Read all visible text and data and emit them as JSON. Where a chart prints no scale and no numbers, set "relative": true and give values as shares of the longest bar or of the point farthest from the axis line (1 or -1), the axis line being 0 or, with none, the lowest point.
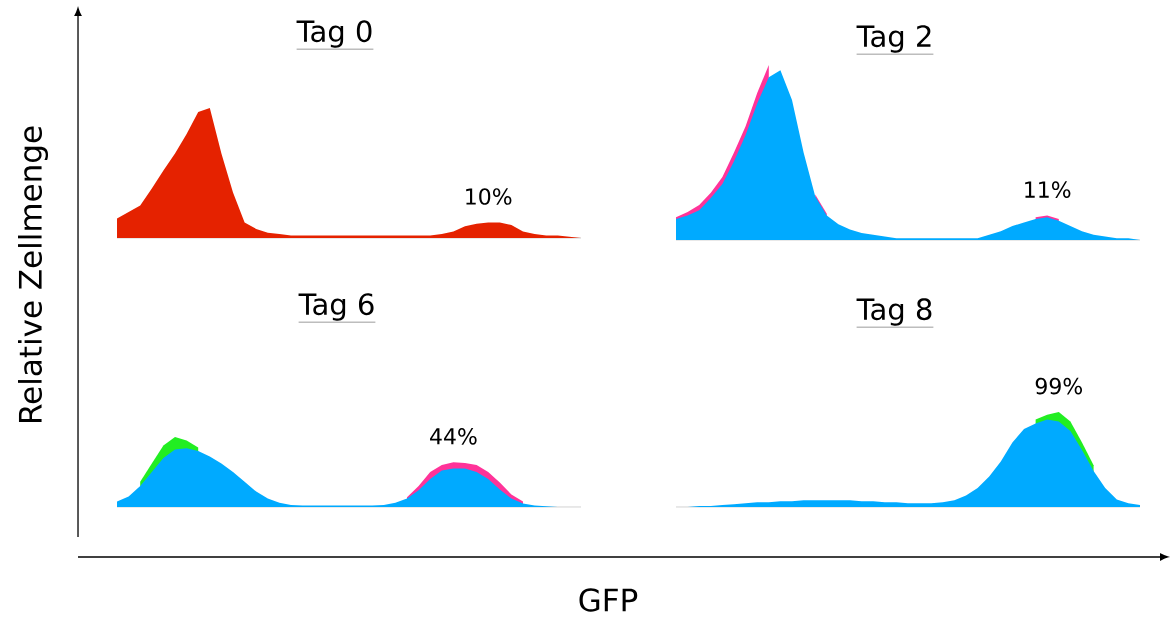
{
  "chart_data": [
    {
      "type": "area",
      "title": "Tag 0",
      "ylabel": "Relative Zellmenge",
      "relative": true,
      "annotations": [
        "10%"
      ],
      "categories": [
        null,
        null,
        null,
        null,
        null,
        null,
        null,
        null,
        null,
        null,
        null,
        null,
        null,
        null,
        null,
        null,
        null,
        null,
        null,
        null,
        null,
        null,
        null,
        null,
        null,
        null,
        null,
        null,
        null,
        null,
        null,
        null,
        null,
        null,
        null,
        null,
        null,
        null,
        null,
        null,
        null
      ],
      "series": [
        {
          "color": "#e52200",
          "values": [
            0.15,
            0.2,
            0.25,
            0.38,
            0.52,
            0.65,
            0.8,
            0.97,
            1.0,
            0.65,
            0.35,
            0.12,
            0.07,
            0.04,
            0.03,
            0.02,
            0.02,
            0.02,
            0.02,
            0.02,
            0.02,
            0.02,
            0.02,
            0.02,
            0.02,
            0.02,
            0.02,
            0.02,
            0.03,
            0.05,
            0.09,
            0.11,
            0.12,
            0.12,
            0.1,
            0.05,
            0.03,
            0.02,
            0.02,
            0.01,
            0
          ]
        }
      ]
    },
    {
      "type": "area",
      "title": "Tag 2",
      "relative": true,
      "annotations": [
        "11%"
      ],
      "categories": [
        null,
        null,
        null,
        null,
        null,
        null,
        null,
        null,
        null,
        null,
        null,
        null,
        null,
        null,
        null,
        null,
        null,
        null,
        null,
        null,
        null,
        null,
        null,
        null,
        null,
        null,
        null,
        null,
        null,
        null,
        null,
        null,
        null,
        null,
        null,
        null,
        null,
        null,
        null,
        null,
        null
      ],
      "series": [
        {
          "color": "#ff3399",
          "values": [
            0.13,
            0.16,
            0.2,
            0.27,
            0.36,
            0.5,
            0.65,
            0.84,
            1.0,
            null,
            null,
            null,
            0.26,
            0.15,
            null,
            null,
            null,
            null,
            null,
            null,
            null,
            null,
            null,
            null,
            null,
            null,
            null,
            null,
            null,
            null,
            null,
            0.13,
            0.14,
            0.12,
            null,
            null,
            null,
            null,
            null,
            null,
            null
          ]
        },
        {
          "color": "#00aaff",
          "values": [
            0.12,
            0.14,
            0.17,
            0.24,
            0.32,
            0.45,
            0.6,
            0.78,
            0.93,
            0.97,
            0.8,
            0.5,
            0.25,
            0.14,
            0.09,
            0.06,
            0.04,
            0.03,
            0.02,
            0.01,
            0.01,
            0.01,
            0.01,
            0.01,
            0.01,
            0.01,
            0.01,
            0.03,
            0.05,
            0.08,
            0.1,
            0.12,
            0.13,
            0.11,
            0.08,
            0.05,
            0.03,
            0.02,
            0.01,
            0.01,
            0
          ]
        }
      ]
    },
    {
      "type": "area",
      "title": "Tag 6",
      "xlabel": "GFP",
      "relative": true,
      "annotations": [
        "44%"
      ],
      "categories": [
        null,
        null,
        null,
        null,
        null,
        null,
        null,
        null,
        null,
        null,
        null,
        null,
        null,
        null,
        null,
        null,
        null,
        null,
        null,
        null,
        null,
        null,
        null,
        null,
        null,
        null,
        null,
        null,
        null,
        null,
        null,
        null,
        null,
        null,
        null,
        null,
        null,
        null,
        null,
        null,
        null
      ],
      "series": [
        {
          "color": "#22ee22",
          "values": [
            null,
            null,
            0.36,
            0.62,
            0.88,
            1.0,
            0.95,
            0.85,
            null,
            null,
            null,
            null,
            null,
            null,
            null,
            null,
            null,
            null,
            null,
            null,
            null,
            null,
            null,
            null,
            null,
            null,
            null,
            null,
            null,
            null,
            null,
            null,
            null,
            null,
            null,
            null,
            null,
            null,
            null,
            null,
            null
          ]
        },
        {
          "color": "#ff3399",
          "values": [
            null,
            null,
            null,
            null,
            null,
            null,
            null,
            null,
            null,
            null,
            null,
            null,
            null,
            null,
            null,
            null,
            null,
            null,
            null,
            null,
            null,
            null,
            null,
            null,
            null,
            0.14,
            0.3,
            0.5,
            0.6,
            0.64,
            0.63,
            0.6,
            0.5,
            0.35,
            0.18,
            0.08,
            null,
            null,
            null,
            null,
            null
          ]
        },
        {
          "color": "#00aaff",
          "values": [
            0.08,
            0.15,
            0.3,
            0.5,
            0.7,
            0.82,
            0.84,
            0.8,
            0.72,
            0.62,
            0.5,
            0.36,
            0.22,
            0.12,
            0.06,
            0.03,
            0.02,
            0.02,
            0.02,
            0.02,
            0.02,
            0.02,
            0.02,
            0.03,
            0.06,
            0.12,
            0.24,
            0.4,
            0.52,
            0.55,
            0.55,
            0.5,
            0.4,
            0.25,
            0.12,
            0.05,
            0.02,
            0.01,
            0,
            0,
            0
          ]
        }
      ]
    },
    {
      "type": "area",
      "title": "Tag 8",
      "relative": true,
      "annotations": [
        "99%"
      ],
      "categories": [
        null,
        null,
        null,
        null,
        null,
        null,
        null,
        null,
        null,
        null,
        null,
        null,
        null,
        null,
        null,
        null,
        null,
        null,
        null,
        null,
        null,
        null,
        null,
        null,
        null,
        null,
        null,
        null,
        null,
        null,
        null,
        null,
        null,
        null,
        null,
        null,
        null,
        null,
        null,
        null,
        null
      ],
      "series": [
        {
          "color": "#22ee22",
          "values": [
            null,
            null,
            null,
            null,
            null,
            null,
            null,
            null,
            null,
            null,
            null,
            null,
            null,
            null,
            null,
            null,
            null,
            null,
            null,
            null,
            null,
            null,
            null,
            null,
            null,
            null,
            null,
            null,
            null,
            null,
            null,
            0.92,
            0.97,
            1.0,
            0.9,
            0.68,
            0.44,
            null,
            null,
            null,
            null
          ]
        },
        {
          "color": "#00aaff",
          "values": [
            0,
            0,
            0.01,
            0.01,
            0.02,
            0.03,
            0.04,
            0.05,
            0.05,
            0.06,
            0.06,
            0.07,
            0.07,
            0.07,
            0.07,
            0.07,
            0.06,
            0.06,
            0.05,
            0.05,
            0.04,
            0.04,
            0.04,
            0.05,
            0.07,
            0.12,
            0.2,
            0.32,
            0.48,
            0.68,
            0.82,
            0.88,
            0.92,
            0.9,
            0.8,
            0.6,
            0.38,
            0.2,
            0.08,
            0.04,
            0.02
          ]
        }
      ]
    }
  ]
}
